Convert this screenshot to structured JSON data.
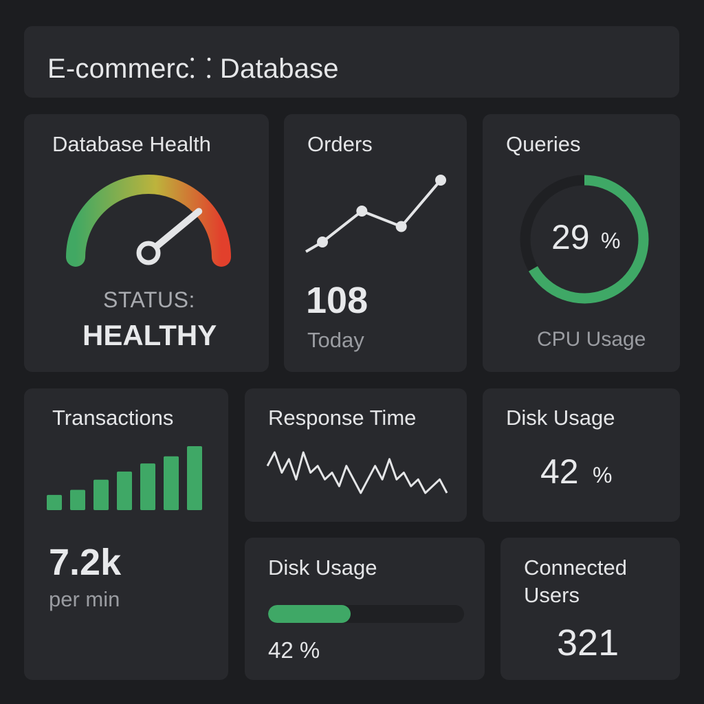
{
  "header": {
    "title": "E-commerc⸬ Database"
  },
  "health": {
    "title": "Database Health",
    "status_label": "STATUS:",
    "status_value": "HEALTHY",
    "gauge_level": 0.78
  },
  "orders": {
    "title": "Orders",
    "value": "108",
    "caption": "Today",
    "trend": [
      1,
      3,
      2,
      5
    ]
  },
  "queries": {
    "title": "Queries",
    "percent_number": "29",
    "percent_sign": "%",
    "percent": 29,
    "caption": "CPU Usage"
  },
  "transactions": {
    "title": "Transactions",
    "value": "7.2k",
    "caption": "per min",
    "bars": [
      1.5,
      2,
      3,
      3.8,
      4.6,
      5.3,
      6.3
    ]
  },
  "response_time": {
    "title": "Response Time",
    "series": [
      4,
      6,
      3,
      5,
      2,
      6,
      3,
      4,
      2,
      3,
      1,
      4,
      2,
      0,
      2,
      4,
      2,
      5,
      2,
      3,
      1,
      2,
      0,
      1,
      2,
      0
    ]
  },
  "disk_usage_1": {
    "title": "Disk Usage",
    "value_number": "42",
    "value_sign": "%"
  },
  "disk_usage_2": {
    "title": "Disk Usage",
    "value_text": "42 %",
    "fraction": 0.42
  },
  "connected_users": {
    "title_line1": "Connected",
    "title_line2": "Users",
    "value": "321"
  },
  "colors": {
    "accent_green": "#3fa866",
    "gauge_start": "#41a863",
    "gauge_mid": "#bdb33c",
    "gauge_end": "#e2402c",
    "line": "#e4e5e7",
    "track": "#1f2023"
  }
}
